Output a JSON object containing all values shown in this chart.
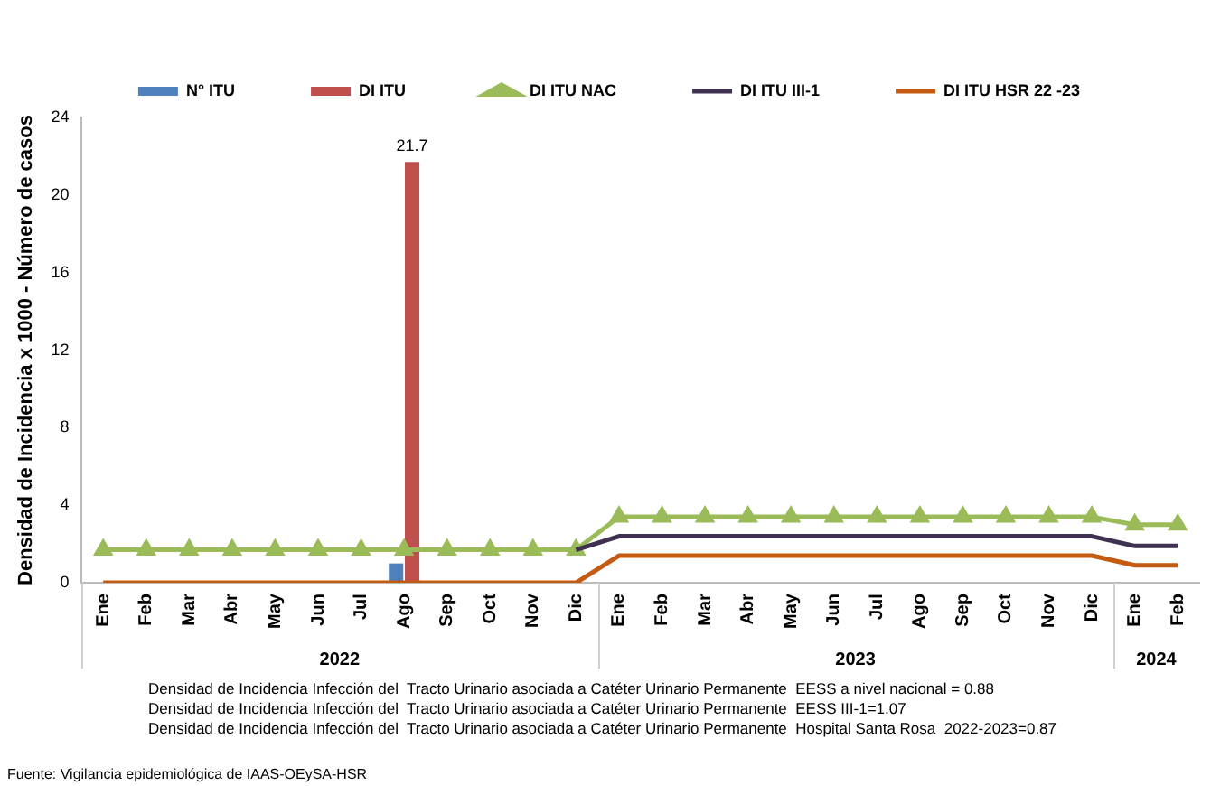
{
  "chart_data": {
    "type": "bar",
    "ylabel": "Densidad de Incidencia x 1000 - Número de casos",
    "categories": [
      "Ene",
      "Feb",
      "Mar",
      "Abr",
      "May",
      "Jun",
      "Jul",
      "Ago",
      "Sep",
      "Oct",
      "Nov",
      "Dic",
      "Ene",
      "Feb",
      "Mar",
      "Abr",
      "May",
      "Jun",
      "Jul",
      "Ago",
      "Sep",
      "Oct",
      "Nov",
      "Dic",
      "Ene",
      "Feb"
    ],
    "series": [
      {
        "name": "N° ITU",
        "color": "#4f81bd",
        "values": [
          null,
          null,
          null,
          null,
          null,
          null,
          null,
          1,
          null,
          null,
          null,
          null,
          null,
          null,
          null,
          null,
          null,
          null,
          null,
          null,
          null,
          null,
          null,
          null,
          null,
          null
        ]
      },
      {
        "name": "DI ITU",
        "color": "#c0504d",
        "values": [
          null,
          null,
          null,
          null,
          null,
          null,
          null,
          21.7,
          null,
          null,
          null,
          null,
          null,
          null,
          null,
          null,
          null,
          null,
          null,
          null,
          null,
          null,
          null,
          null,
          null,
          null
        ],
        "value_labels": [
          null,
          null,
          null,
          null,
          null,
          null,
          null,
          "21.7",
          null,
          null,
          null,
          null,
          null,
          null,
          null,
          null,
          null,
          null,
          null,
          null,
          null,
          null,
          null,
          null,
          null,
          null
        ]
      },
      {
        "name": "DI ITU NAC",
        "type": "line",
        "color": "#9bbb59",
        "marker": "triangle",
        "values": [
          1.7,
          1.7,
          1.7,
          1.7,
          1.7,
          1.7,
          1.7,
          1.7,
          1.7,
          1.7,
          1.7,
          1.7,
          3.4,
          3.4,
          3.4,
          3.4,
          3.4,
          3.4,
          3.4,
          3.4,
          3.4,
          3.4,
          3.4,
          3.4,
          3.0,
          3.0
        ]
      },
      {
        "name": "DI ITU III-1",
        "type": "line",
        "color": "#403152",
        "marker": "none",
        "values": [
          null,
          null,
          null,
          null,
          null,
          null,
          null,
          null,
          null,
          null,
          null,
          1.7,
          2.4,
          2.4,
          2.4,
          2.4,
          2.4,
          2.4,
          2.4,
          2.4,
          2.4,
          2.4,
          2.4,
          2.4,
          1.9,
          1.9
        ]
      },
      {
        "name": "DI ITU HSR 22 -23",
        "type": "line",
        "color": "#c55a11",
        "marker": "none",
        "values": [
          0,
          0,
          0,
          0,
          0,
          0,
          0,
          0,
          0,
          0,
          0,
          0,
          1.4,
          1.4,
          1.4,
          1.4,
          1.4,
          1.4,
          1.4,
          1.4,
          1.4,
          1.4,
          1.4,
          1.4,
          0.9,
          0.9
        ]
      }
    ],
    "ylim": [
      0,
      24
    ],
    "yticks": [
      0,
      4,
      8,
      12,
      16,
      20,
      24
    ],
    "grid": false,
    "legend": "top",
    "annotations": [
      "2022",
      "2023",
      "2024",
      "Densidad de Incidencia Infección del  Tracto Urinario asociada a Catéter Urinario Permanente  EESS a nivel nacional = 0.88",
      "Densidad de Incidencia Infección del  Tracto Urinario asociada a Catéter Urinario Permanente  EESS III-1=1.07",
      "Densidad de Incidencia Infección del  Tracto Urinario asociada a Catéter Urinario Permanente  Hospital Santa Rosa  2022-2023=0.87",
      "Fuente: Vigilancia epidemiológica de IAAS-OEySA-HSR"
    ]
  }
}
